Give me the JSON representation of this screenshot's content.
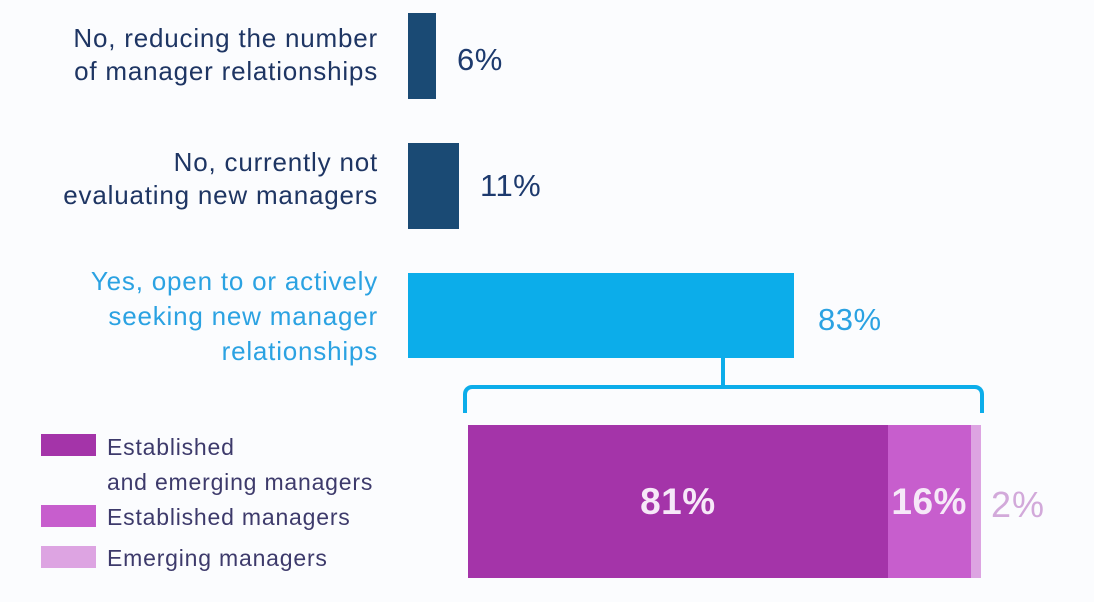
{
  "chart_data": {
    "type": "bar",
    "orientation": "horizontal",
    "title": "",
    "xlabel": "",
    "ylabel": "",
    "unit": "%",
    "axes_visible": false,
    "grid": false,
    "data_labels": true,
    "categories": [
      "No, reducing the number of manager relationships",
      "No, currently not evaluating new managers",
      "Yes, open to or actively seeking new manager relationships"
    ],
    "values": [
      6,
      11,
      83
    ],
    "value_labels": [
      "6%",
      "11%",
      "83%"
    ],
    "bar_colors": [
      "#1a4a74",
      "#1a4a74",
      "#0cadea"
    ],
    "breakdown": {
      "type": "stacked-bar",
      "parent_category": "Yes, open to or actively seeking new manager relationships",
      "parent_value": 83,
      "connector_color": "#0cadea",
      "legend_position": "bottom-left",
      "segments": [
        {
          "name": "Established and emerging managers",
          "value": 81,
          "label": "81%",
          "color": "#a434a9"
        },
        {
          "name": "Established managers",
          "value": 16,
          "label": "16%",
          "color": "#c75ecd"
        },
        {
          "name": "Emerging managers",
          "value": 2,
          "label": "2%",
          "color": "#dda4e2"
        }
      ]
    }
  },
  "chart": {
    "rows": [
      {
        "label_lines": [
          "No, reducing the number",
          "of manager relationships"
        ],
        "value": 6,
        "value_label": "6%"
      },
      {
        "label_lines": [
          "No, currently not",
          "evaluating new managers"
        ],
        "value": 11,
        "value_label": "11%"
      },
      {
        "label_lines": [
          "Yes, open to or actively",
          "seeking new manager",
          "relationships"
        ],
        "value": 83,
        "value_label": "83%"
      }
    ],
    "breakdown": {
      "segments": [
        {
          "name": "Established and emerging managers",
          "value": 81,
          "value_label": "81%"
        },
        {
          "name": "Established managers",
          "value": 16,
          "value_label": "16%"
        },
        {
          "name": "Emerging managers",
          "value": 2,
          "value_label": "2%"
        }
      ]
    },
    "legend": [
      {
        "label_lines": [
          "Established",
          "and emerging managers"
        ]
      },
      {
        "label_lines": [
          "Established managers"
        ]
      },
      {
        "label_lines": [
          "Emerging managers"
        ]
      }
    ]
  },
  "colors": {
    "navy_bar": "#1a4a74",
    "cyan_bar": "#0cadea",
    "cyan_text": "#2ba2e2",
    "navy_text": "#1e3563",
    "magenta_segment": "#a434a9",
    "orchid_segment": "#c75ecd",
    "light_orchid_segment": "#dda4e2",
    "outside_label_text": "#d2a9da",
    "legend_text": "#3d3a6b",
    "background": "#fbfcfe"
  }
}
